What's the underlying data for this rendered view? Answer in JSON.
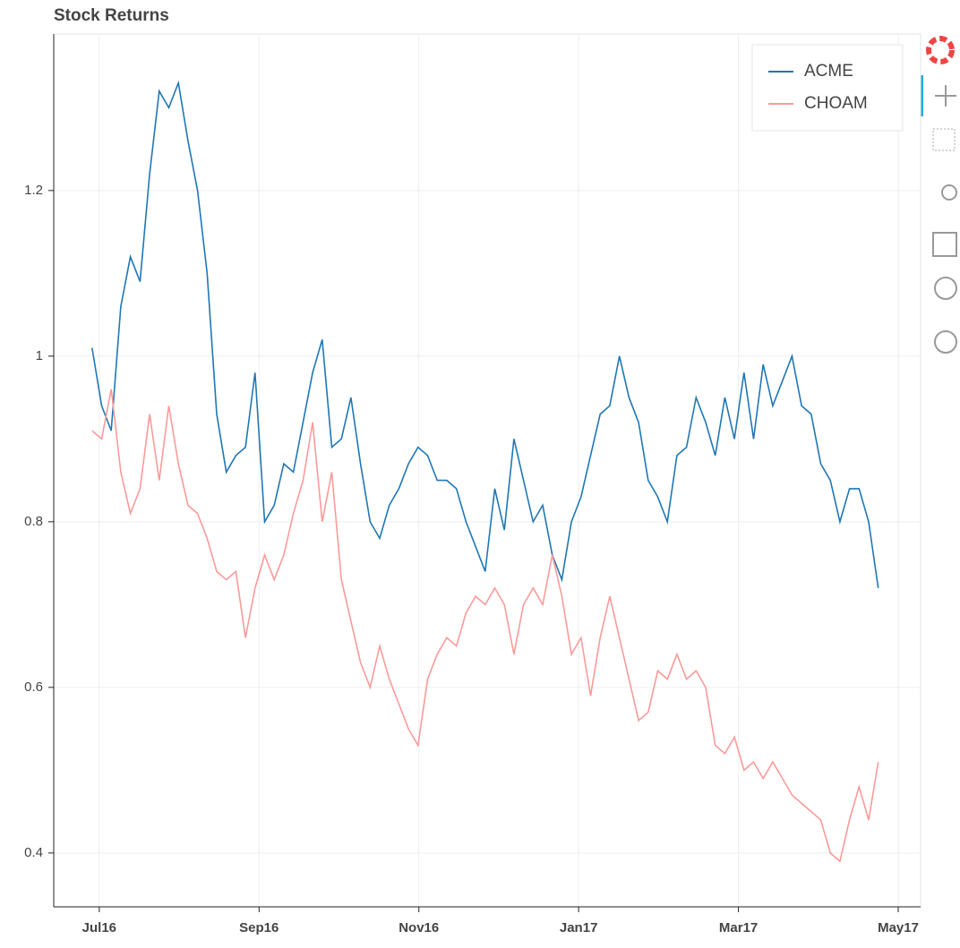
{
  "chart_data": {
    "type": "line",
    "title": "Stock Returns",
    "x": [
      -0.09,
      0.03,
      0.15,
      0.27,
      0.39,
      0.51,
      0.63,
      0.75,
      0.87,
      0.99,
      1.11,
      1.23,
      1.35,
      1.47,
      1.59,
      1.71,
      1.83,
      1.95,
      2.07,
      2.19,
      2.31,
      2.43,
      2.55,
      2.67,
      2.79,
      2.91,
      3.03,
      3.15,
      3.27,
      3.39,
      3.51,
      3.63,
      3.75,
      3.87,
      3.99,
      4.11,
      4.23,
      4.35,
      4.47,
      4.59,
      4.71,
      4.83,
      4.95,
      5.07,
      5.19,
      5.31,
      5.43,
      5.55,
      5.67,
      5.79,
      5.91,
      6.03,
      6.15,
      6.27,
      6.39,
      6.51,
      6.63,
      6.75,
      6.87,
      6.99,
      7.11,
      7.23,
      7.35,
      7.47,
      7.59,
      7.71,
      7.83,
      7.95,
      8.07,
      8.19,
      8.31,
      8.43,
      8.55,
      8.67,
      8.79,
      8.91,
      9.03,
      9.15,
      9.27,
      9.39,
      9.51,
      9.63,
      9.75
    ],
    "series": [
      {
        "name": "ACME",
        "color": "#1f77b4",
        "values": [
          1.01,
          0.94,
          0.91,
          1.06,
          1.12,
          1.09,
          1.22,
          1.32,
          1.3,
          1.33,
          1.26,
          1.2,
          1.1,
          0.93,
          0.86,
          0.88,
          0.89,
          0.98,
          0.8,
          0.82,
          0.87,
          0.86,
          0.92,
          0.98,
          1.02,
          0.89,
          0.9,
          0.95,
          0.87,
          0.8,
          0.78,
          0.82,
          0.84,
          0.87,
          0.89,
          0.88,
          0.85,
          0.85,
          0.84,
          0.8,
          0.77,
          0.74,
          0.84,
          0.79,
          0.9,
          0.85,
          0.8,
          0.82,
          0.76,
          0.73,
          0.8,
          0.83,
          0.88,
          0.93,
          0.94,
          1.0,
          0.95,
          0.92,
          0.85,
          0.83,
          0.8,
          0.88,
          0.89,
          0.95,
          0.92,
          0.88,
          0.95,
          0.9,
          0.98,
          0.9,
          0.99,
          0.94,
          0.97,
          1.0,
          0.94,
          0.93,
          0.87,
          0.85,
          0.8,
          0.84,
          0.84,
          0.8,
          0.72
        ]
      },
      {
        "name": "CHOAM",
        "color": "#fb9a99",
        "values": [
          0.91,
          0.9,
          0.96,
          0.86,
          0.81,
          0.84,
          0.93,
          0.85,
          0.94,
          0.87,
          0.82,
          0.81,
          0.78,
          0.74,
          0.73,
          0.74,
          0.66,
          0.72,
          0.76,
          0.73,
          0.76,
          0.81,
          0.85,
          0.92,
          0.8,
          0.86,
          0.73,
          0.68,
          0.63,
          0.6,
          0.65,
          0.61,
          0.58,
          0.55,
          0.53,
          0.61,
          0.64,
          0.66,
          0.65,
          0.69,
          0.71,
          0.7,
          0.72,
          0.7,
          0.64,
          0.7,
          0.72,
          0.7,
          0.76,
          0.71,
          0.64,
          0.66,
          0.59,
          0.66,
          0.71,
          0.66,
          0.61,
          0.56,
          0.57,
          0.62,
          0.61,
          0.64,
          0.61,
          0.62,
          0.6,
          0.53,
          0.52,
          0.54,
          0.5,
          0.51,
          0.49,
          0.51,
          0.49,
          0.47,
          0.46,
          0.45,
          0.44,
          0.4,
          0.39,
          0.44,
          0.48,
          0.44,
          0.51
        ]
      }
    ],
    "xlim": [
      -0.57,
      10.28
    ],
    "xticks": [
      {
        "value": 0,
        "label": "Jul16"
      },
      {
        "value": 2,
        "label": "Sep16"
      },
      {
        "value": 4,
        "label": "Nov16"
      },
      {
        "value": 6,
        "label": "Jan17"
      },
      {
        "value": 8,
        "label": "Mar17"
      },
      {
        "value": 10,
        "label": "May17"
      }
    ],
    "ylim": [
      0.335,
      1.389
    ],
    "yticks": [
      0.4,
      0.6,
      0.8,
      1,
      1.2
    ],
    "grid": true,
    "legend": "top_right"
  }
}
